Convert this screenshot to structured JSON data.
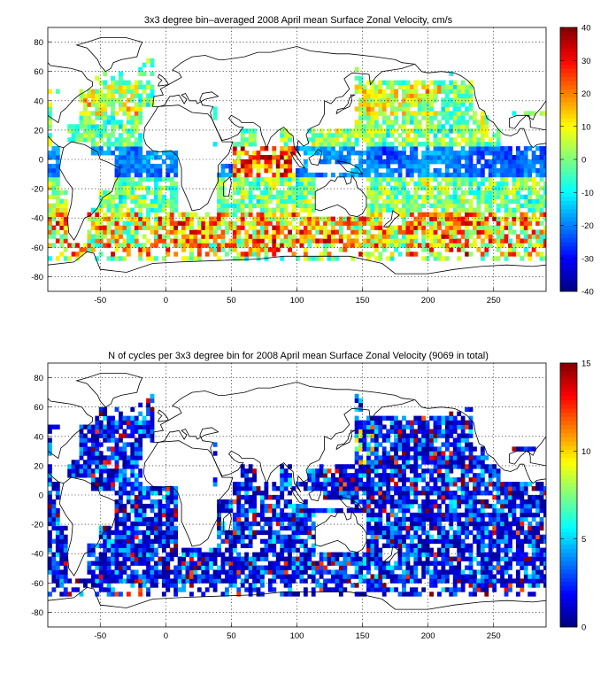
{
  "chart_data": [
    {
      "type": "heatmap",
      "title": "3x3 degree bin–averaged 2008 April mean Surface Zonal Velocity, cm/s",
      "xlabel": "",
      "ylabel": "",
      "xlim": [
        -90,
        290
      ],
      "ylim": [
        -90,
        90
      ],
      "x_ticks": [
        -50,
        0,
        50,
        100,
        150,
        200,
        250
      ],
      "y_ticks": [
        -80,
        -60,
        -40,
        -20,
        0,
        20,
        40,
        60,
        80
      ],
      "x_tick_labels": [
        "-50",
        "0",
        "50",
        "100",
        "150",
        "200",
        "250"
      ],
      "y_tick_labels": [
        "-80",
        "-60",
        "-40",
        "-20",
        "0",
        "20",
        "40",
        "60",
        "80"
      ],
      "bin_size_deg": 3,
      "grid": true,
      "colormap": "jet",
      "color_range": [
        -40,
        40
      ],
      "colorbar_ticks": [
        -40,
        -30,
        -20,
        -10,
        0,
        10,
        20,
        30,
        40
      ],
      "colorbar_tick_labels": [
        "-40",
        "-30",
        "-20",
        "-10",
        "0",
        "10",
        "20",
        "30",
        "40"
      ]
    },
    {
      "type": "heatmap",
      "title": "N of cycles per 3x3 degree bin for 2008 April mean Surface Zonal Velocity (9069 in total)",
      "xlabel": "",
      "ylabel": "",
      "xlim": [
        -90,
        290
      ],
      "ylim": [
        -90,
        90
      ],
      "x_ticks": [
        -50,
        0,
        50,
        100,
        150,
        200,
        250
      ],
      "y_ticks": [
        -80,
        -60,
        -40,
        -20,
        0,
        20,
        40,
        60,
        80
      ],
      "x_tick_labels": [
        "-50",
        "0",
        "50",
        "100",
        "150",
        "200",
        "250"
      ],
      "y_tick_labels": [
        "-80",
        "-60",
        "-40",
        "-20",
        "0",
        "20",
        "40",
        "60",
        "80"
      ],
      "bin_size_deg": 3,
      "grid": true,
      "colormap": "jet",
      "color_range": [
        0,
        15
      ],
      "colorbar_ticks": [
        0,
        5,
        10,
        15
      ],
      "colorbar_tick_labels": [
        "0",
        "5",
        "10",
        "15"
      ],
      "total_cycles": 9069
    }
  ]
}
